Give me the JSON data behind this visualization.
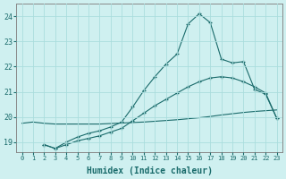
{
  "xlabel": "Humidex (Indice chaleur)",
  "bg_color": "#cff0f0",
  "grid_color": "#aadddd",
  "line_color": "#1a6b6b",
  "xlim": [
    -0.5,
    23.5
  ],
  "ylim": [
    18.6,
    24.5
  ],
  "yticks": [
    19,
    20,
    21,
    22,
    23,
    24
  ],
  "xticks": [
    0,
    1,
    2,
    3,
    4,
    5,
    6,
    7,
    8,
    9,
    10,
    11,
    12,
    13,
    14,
    15,
    16,
    17,
    18,
    19,
    20,
    21,
    22,
    23
  ],
  "series": [
    {
      "x": [
        0,
        1,
        2,
        3,
        4,
        5,
        6,
        7,
        8,
        9,
        10,
        11,
        12,
        13,
        14,
        15,
        16,
        17,
        18,
        19,
        20,
        21,
        22,
        23
      ],
      "y": [
        19.75,
        19.8,
        19.75,
        19.72,
        19.72,
        19.72,
        19.72,
        19.72,
        19.74,
        19.76,
        19.78,
        19.8,
        19.83,
        19.86,
        19.89,
        19.93,
        19.97,
        20.02,
        20.08,
        20.13,
        20.18,
        20.22,
        20.25,
        20.28
      ],
      "marker": false
    },
    {
      "x": [
        2,
        3,
        4,
        5,
        6,
        7,
        8,
        9,
        10,
        11,
        12,
        13,
        14,
        15,
        16,
        17,
        18,
        19,
        20,
        21,
        22,
        23
      ],
      "y": [
        18.9,
        18.75,
        18.9,
        19.05,
        19.15,
        19.25,
        19.4,
        19.55,
        19.85,
        20.15,
        20.45,
        20.7,
        20.95,
        21.2,
        21.4,
        21.55,
        21.6,
        21.55,
        21.4,
        21.2,
        20.95,
        19.95
      ],
      "marker": true
    },
    {
      "x": [
        2,
        3,
        4,
        5,
        6,
        7,
        8,
        9,
        10,
        11,
        12,
        13,
        14,
        15,
        16,
        17,
        18,
        19,
        20,
        21,
        22,
        23
      ],
      "y": [
        18.9,
        18.75,
        19.0,
        19.2,
        19.35,
        19.45,
        19.6,
        19.8,
        20.4,
        21.05,
        21.6,
        22.1,
        22.5,
        23.7,
        24.1,
        23.75,
        22.3,
        22.15,
        22.2,
        21.1,
        20.9,
        19.95
      ],
      "marker": true
    }
  ]
}
